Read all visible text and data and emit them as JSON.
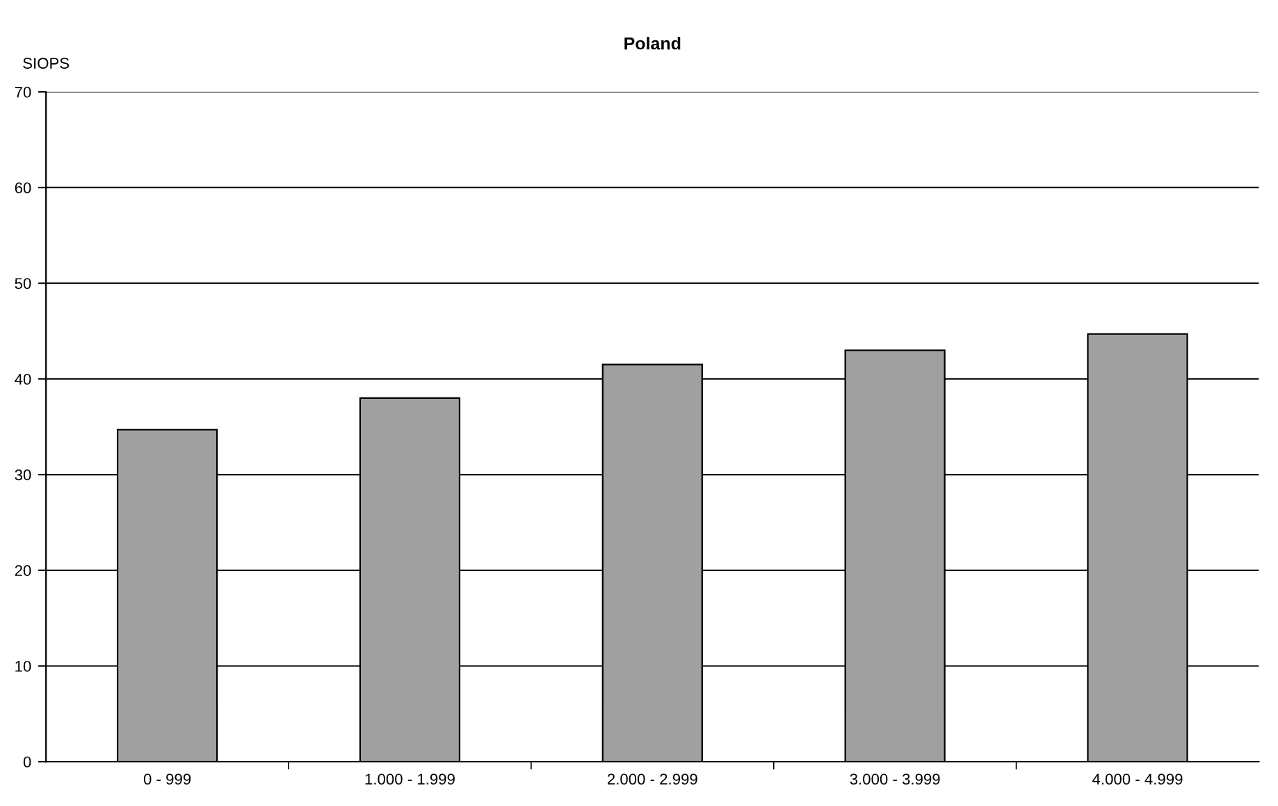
{
  "chart_data": {
    "type": "bar",
    "title": "Poland",
    "ylabel": "SIOPS",
    "categories": [
      "0 - 999",
      "1.000 - 1.999",
      "2.000 - 2.999",
      "3.000 - 3.999",
      "4.000 - 4.999"
    ],
    "values": [
      34.7,
      38.0,
      41.5,
      43.0,
      44.7
    ],
    "color": "#a0a0a0",
    "ylim": [
      0,
      70
    ],
    "yticks": [
      0,
      10,
      20,
      30,
      40,
      50,
      60,
      70
    ],
    "grid": "y"
  }
}
